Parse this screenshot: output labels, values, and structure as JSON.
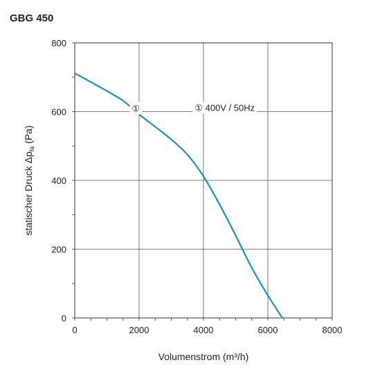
{
  "chart_data": {
    "type": "line",
    "title": "GBG 450",
    "xlabel": "Volumenstrom (m³/h)",
    "ylabel": {
      "prefix": "statischer Druck Δp",
      "subscript": "fa",
      "suffix": " (Pa)"
    },
    "xlim": [
      0,
      8000
    ],
    "ylim": [
      0,
      800
    ],
    "xticks": [
      0,
      2000,
      4000,
      6000,
      8000
    ],
    "yticks": [
      0,
      200,
      400,
      600,
      800
    ],
    "x_minor_step": 500,
    "y_minor_step": 100,
    "grid": true,
    "series": [
      {
        "color": "#1a8fc0",
        "points": [
          [
            0,
            712
          ],
          [
            500,
            686
          ],
          [
            1000,
            660
          ],
          [
            1500,
            632
          ],
          [
            1800,
            608
          ],
          [
            2000,
            592
          ],
          [
            2500,
            556
          ],
          [
            3000,
            519
          ],
          [
            3500,
            475
          ],
          [
            4000,
            412
          ],
          [
            4500,
            330
          ],
          [
            5000,
            240
          ],
          [
            5500,
            146
          ],
          [
            6000,
            66
          ],
          [
            6450,
            0
          ]
        ]
      }
    ],
    "annotations": [
      {
        "marker": "①",
        "at": [
          1900,
          610
        ]
      },
      {
        "marker": "①",
        "text": "400V / 50Hz",
        "at": [
          3900,
          610
        ]
      }
    ]
  }
}
